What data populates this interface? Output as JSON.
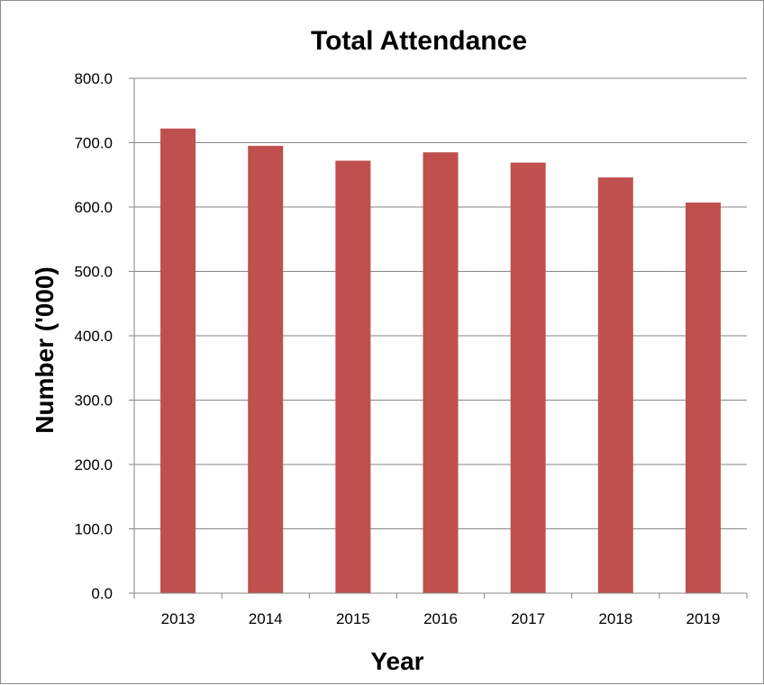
{
  "chart_data": {
    "type": "bar",
    "title": "Total Attendance",
    "xlabel": "Year",
    "ylabel": "Number ('000)",
    "categories": [
      "2013",
      "2014",
      "2015",
      "2016",
      "2017",
      "2018",
      "2019"
    ],
    "series": [
      {
        "values": [
          722,
          695,
          672,
          685,
          669,
          646,
          607
        ]
      }
    ],
    "ylim": [
      0,
      800
    ],
    "yticks": [
      "0.0",
      "100.0",
      "200.0",
      "300.0",
      "400.0",
      "500.0",
      "600.0",
      "700.0",
      "800.0"
    ],
    "grid": true,
    "legend": "none",
    "bar_color": "#c0504d",
    "grid_color": "#868686"
  }
}
